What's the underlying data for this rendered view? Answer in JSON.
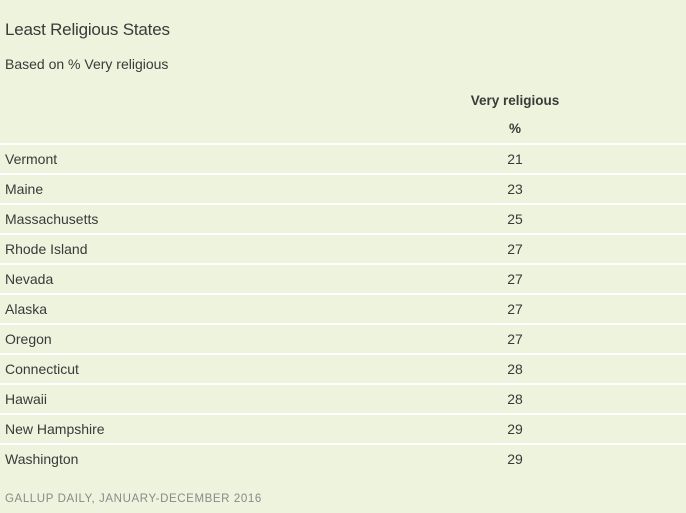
{
  "chart_data": {
    "type": "table",
    "title": "Least Religious States",
    "subtitle": "Based on % Very religious",
    "columns": [
      "Very religious",
      "%"
    ],
    "rows": [
      {
        "state": "Vermont",
        "value": 21
      },
      {
        "state": "Maine",
        "value": 23
      },
      {
        "state": "Massachusetts",
        "value": 25
      },
      {
        "state": "Rhode Island",
        "value": 27
      },
      {
        "state": "Nevada",
        "value": 27
      },
      {
        "state": "Alaska",
        "value": 27
      },
      {
        "state": "Oregon",
        "value": 27
      },
      {
        "state": "Connecticut",
        "value": 28
      },
      {
        "state": "Hawaii",
        "value": 28
      },
      {
        "state": "New Hampshire",
        "value": 29
      },
      {
        "state": "Washington",
        "value": 29
      }
    ],
    "source": "GALLUP DAILY, JANUARY-DECEMBER 2016"
  }
}
